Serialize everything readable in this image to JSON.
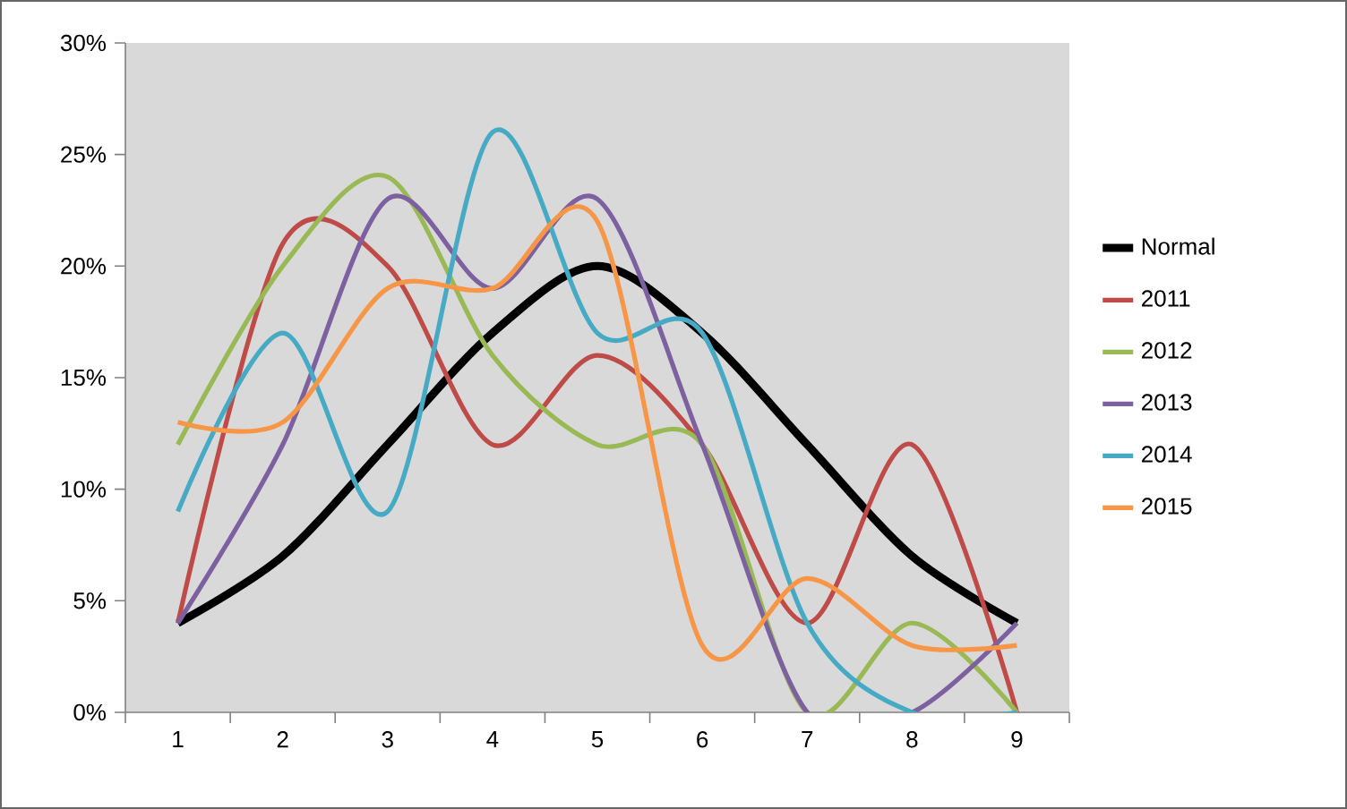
{
  "chart_data": {
    "type": "line",
    "categories": [
      "1",
      "2",
      "3",
      "4",
      "5",
      "6",
      "7",
      "8",
      "9"
    ],
    "series": [
      {
        "name": "Normal",
        "color": "#000000",
        "values": [
          4,
          7,
          12,
          17,
          20,
          17,
          12,
          7,
          4
        ]
      },
      {
        "name": "2011",
        "color": "#be4b48",
        "values": [
          4,
          21,
          20,
          12,
          16,
          12,
          4,
          12,
          0
        ]
      },
      {
        "name": "2012",
        "color": "#98b954",
        "values": [
          12,
          20,
          24,
          16,
          12,
          12,
          0,
          4,
          0
        ]
      },
      {
        "name": "2013",
        "color": "#7d60a0",
        "values": [
          4,
          12,
          23,
          19,
          23,
          12,
          0,
          0,
          4
        ]
      },
      {
        "name": "2014",
        "color": "#46aac5",
        "values": [
          9,
          17,
          9,
          26,
          17,
          17,
          4,
          0,
          0
        ]
      },
      {
        "name": "2015",
        "color": "#f79646",
        "values": [
          13,
          13,
          19,
          19,
          22,
          3,
          6,
          3,
          3
        ]
      }
    ],
    "ylim": [
      0,
      30
    ],
    "yticks": [
      {
        "value": 0,
        "label": "0%"
      },
      {
        "value": 5,
        "label": "5%"
      },
      {
        "value": 10,
        "label": "10%"
      },
      {
        "value": 15,
        "label": "15%"
      },
      {
        "value": 20,
        "label": "20%"
      },
      {
        "value": 25,
        "label": "25%"
      },
      {
        "value": 30,
        "label": "30%"
      }
    ],
    "legend": "right",
    "grid": false,
    "marker": "none",
    "line_style": "solid"
  }
}
